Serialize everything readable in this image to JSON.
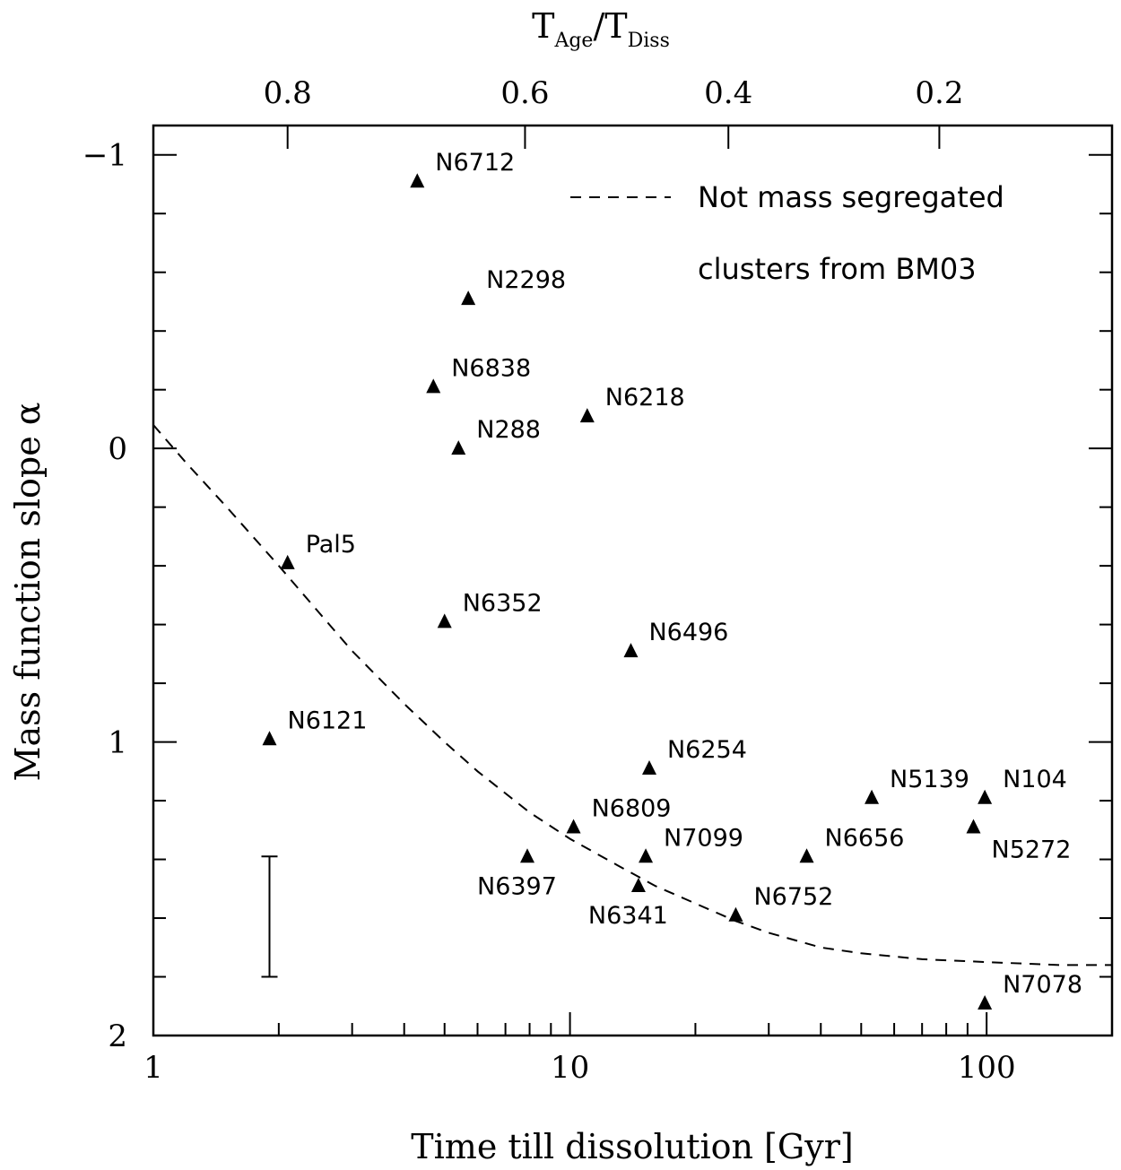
{
  "chart_data": {
    "type": "scatter",
    "title": "",
    "xlabel": "Time till dissolution [Gyr]",
    "ylabel": "Mass function slope α",
    "x_scale": "log",
    "xlim": [
      1,
      200
    ],
    "ylim": [
      -1.1,
      2.0
    ],
    "y_inverted": true,
    "x_ticks": [
      1,
      10,
      100
    ],
    "x_tick_labels": [
      "1",
      "10",
      "100"
    ],
    "y_ticks": [
      -1,
      0,
      1,
      2
    ],
    "y_tick_labels": [
      "−1",
      "0",
      "1",
      "2"
    ],
    "top_axis": {
      "label_main": "T",
      "label_sub1": "Age",
      "label_slash": "/",
      "label_main2": "T",
      "label_sub2": "Diss",
      "ticks": [
        {
          "label": "0.8",
          "x": 2.1
        },
        {
          "label": "0.6",
          "x": 7.8
        },
        {
          "label": "0.4",
          "x": 24.0
        },
        {
          "label": "0.2",
          "x": 77.0
        }
      ]
    },
    "points": [
      {
        "name": "N6712",
        "x": 4.3,
        "y": -0.91
      },
      {
        "name": "N2298",
        "x": 5.7,
        "y": -0.51
      },
      {
        "name": "N6838",
        "x": 4.7,
        "y": -0.21
      },
      {
        "name": "N288",
        "x": 5.4,
        "y": 0.0
      },
      {
        "name": "N6218",
        "x": 11.0,
        "y": -0.11
      },
      {
        "name": "Pal5",
        "x": 2.1,
        "y": 0.39
      },
      {
        "name": "N6352",
        "x": 5.0,
        "y": 0.59
      },
      {
        "name": "N6496",
        "x": 14.0,
        "y": 0.69
      },
      {
        "name": "N6121",
        "x": 1.9,
        "y": 0.99
      },
      {
        "name": "N6254",
        "x": 15.5,
        "y": 1.09
      },
      {
        "name": "N5139",
        "x": 53.0,
        "y": 1.19
      },
      {
        "name": "N104",
        "x": 99.0,
        "y": 1.19
      },
      {
        "name": "N6809",
        "x": 10.2,
        "y": 1.29
      },
      {
        "name": "N5272",
        "x": 93.0,
        "y": 1.29
      },
      {
        "name": "N6397",
        "x": 7.9,
        "y": 1.39
      },
      {
        "name": "N7099",
        "x": 15.2,
        "y": 1.39
      },
      {
        "name": "N6656",
        "x": 37.0,
        "y": 1.39
      },
      {
        "name": "N6341",
        "x": 14.6,
        "y": 1.49
      },
      {
        "name": "N6752",
        "x": 25.0,
        "y": 1.59
      },
      {
        "name": "N7078",
        "x": 99.0,
        "y": 1.89
      }
    ],
    "error_bar": {
      "x": 1.9,
      "y_low": 1.39,
      "y_high": 1.8
    },
    "model_curve": {
      "name": "Not mass segregated clusters from BM03",
      "x": [
        1,
        1.2,
        1.5,
        2,
        2.5,
        3,
        4,
        5,
        6,
        8,
        10,
        13,
        16,
        20,
        25,
        30,
        40,
        50,
        70,
        100,
        150,
        200
      ],
      "y": [
        -0.08,
        0.05,
        0.2,
        0.4,
        0.56,
        0.69,
        0.87,
        1.0,
        1.1,
        1.24,
        1.33,
        1.42,
        1.49,
        1.55,
        1.61,
        1.65,
        1.7,
        1.72,
        1.74,
        1.75,
        1.76,
        1.76
      ]
    },
    "legend": {
      "position": "top-right",
      "line1": "Not mass segregated",
      "line2": "clusters from BM03"
    }
  }
}
